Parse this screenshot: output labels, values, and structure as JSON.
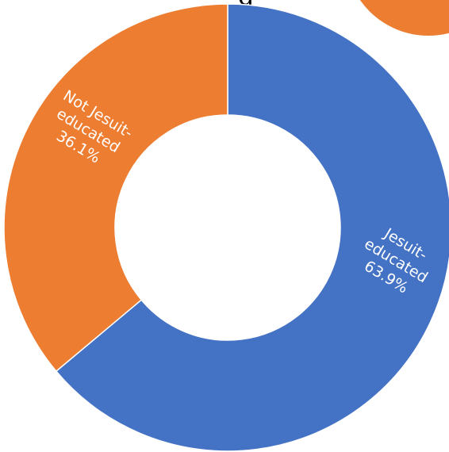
{
  "header": {
    "title_fragment": "g"
  },
  "chart_data": {
    "type": "pie",
    "donut": true,
    "start_angle_deg": 0,
    "direction": "clockwise",
    "slices": [
      {
        "label_lines": [
          "Jesuit-",
          "educated"
        ],
        "value": 63.9,
        "value_label": "63.9%",
        "color": "#4472C4"
      },
      {
        "label_lines": [
          "Not Jesuit-",
          "educated"
        ],
        "value": 36.1,
        "value_label": "36.1%",
        "color": "#ED7D31"
      }
    ],
    "decoration": {
      "partial_circle_color": "#ED7D31"
    }
  }
}
